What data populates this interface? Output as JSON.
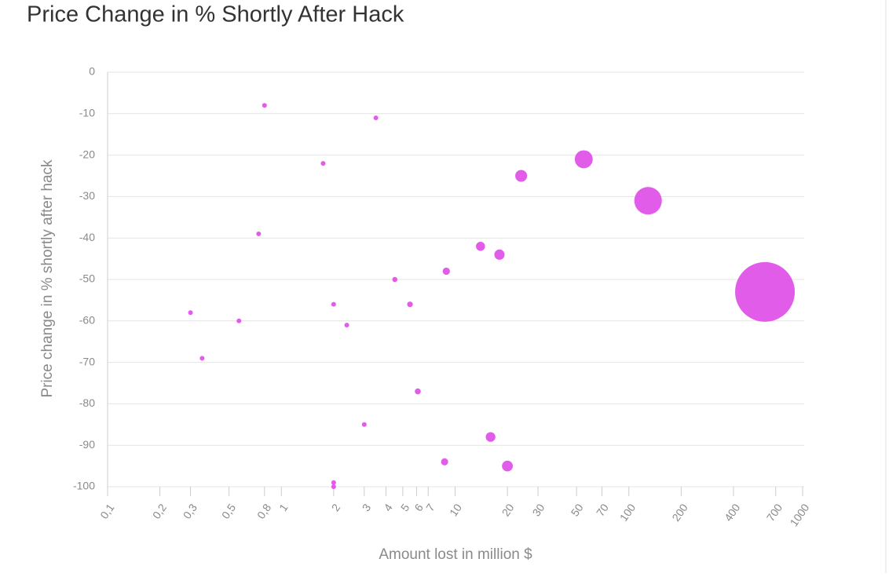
{
  "chart_data": {
    "type": "scatter",
    "title": "Price Change in % Shortly After Hack",
    "x_label": "Amount lost in million $",
    "y_label": "Price change in % shortly after hack",
    "x_scale": "log",
    "grid": true,
    "color": "#e04ee8",
    "series": [
      {
        "name": null,
        "color": "#e04ee8",
        "x": [
          0.8,
          3.5,
          1.74,
          55,
          24,
          129,
          0.74,
          14,
          18,
          8.9,
          4.5,
          607,
          2.0,
          5.5,
          0.3,
          0.57,
          2.38,
          0.35,
          6.1,
          3.0,
          16,
          8.7,
          20,
          2.0,
          2.0
        ],
        "values": [
          -8,
          -11,
          -22,
          -21,
          -25,
          -31,
          -39,
          -42,
          -44,
          -48,
          -50,
          -53,
          -56,
          -56,
          -58,
          -60,
          -61,
          -69,
          -77,
          -85,
          -88,
          -94,
          -95,
          -99,
          -100
        ]
      }
    ],
    "xlim": [
      0.1,
      1000
    ],
    "xticks": [
      {
        "value": 0.1,
        "label": "0,1"
      },
      {
        "value": 0.2,
        "label": "0,2"
      },
      {
        "value": 0.3,
        "label": "0,3"
      },
      {
        "value": 0.5,
        "label": "0,5"
      },
      {
        "value": 0.8,
        "label": "0,8"
      },
      1,
      2,
      3,
      4,
      5,
      6,
      7,
      10,
      20,
      30,
      50,
      70,
      100,
      200,
      400,
      700,
      1000
    ],
    "ylim": [
      -100,
      0
    ],
    "yticks": [
      0,
      -10,
      -20,
      -30,
      -40,
      -50,
      -60,
      -70,
      -80,
      -90,
      -100
    ]
  }
}
